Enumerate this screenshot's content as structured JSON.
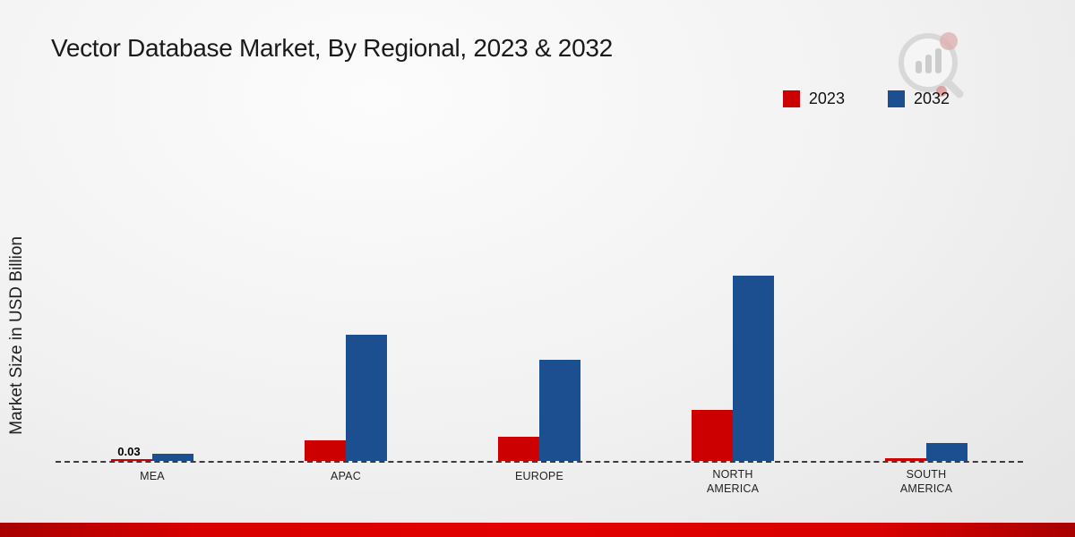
{
  "title": "Vector Database Market, By Regional, 2023 & 2032",
  "ylabel": "Market Size in USD Billion",
  "legend": [
    {
      "label": "2023",
      "color": "#cc0000"
    },
    {
      "label": "2032",
      "color": "#1b4f8f"
    }
  ],
  "colors": {
    "series_2023": "#cc0000",
    "series_2032": "#1b4f8f",
    "footer": "#d80000"
  },
  "chart_data": {
    "type": "bar",
    "title": "Vector Database Market, By Regional, 2023 & 2032",
    "xlabel": "",
    "ylabel": "Market Size in USD Billion",
    "categories": [
      "MEA",
      "APAC",
      "EUROPE",
      "NORTH AMERICA",
      "SOUTH AMERICA"
    ],
    "series": [
      {
        "name": "2023",
        "color": "#cc0000",
        "values": [
          0.03,
          0.35,
          0.41,
          0.86,
          0.04
        ]
      },
      {
        "name": "2032",
        "color": "#1b4f8f",
        "values": [
          0.12,
          2.14,
          1.71,
          3.14,
          0.3
        ]
      }
    ],
    "ylim": [
      0,
      3.5
    ],
    "grid": false,
    "baseline": "dashed",
    "legend_position": "top-right",
    "annotations": [
      {
        "text": "0.03",
        "category_index": 0,
        "series_index": 0
      }
    ]
  }
}
